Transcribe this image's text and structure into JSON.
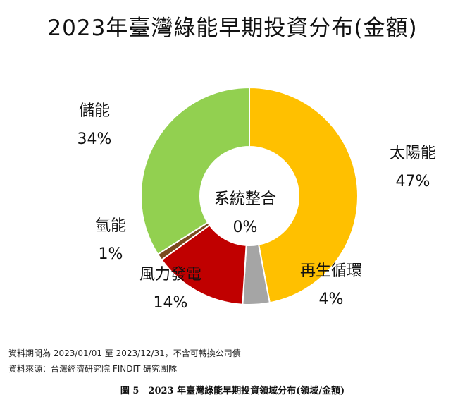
{
  "chart_data": {
    "type": "pie",
    "title": "2023年臺灣綠能早期投資分布(金額)",
    "categories": [
      "太陽能",
      "再生循環",
      "系統整合",
      "風力發電",
      "氫能",
      "儲能"
    ],
    "values": [
      47,
      4,
      0,
      14,
      1,
      34
    ],
    "value_labels": [
      "47%",
      "4%",
      "0%",
      "14%",
      "1%",
      "34%"
    ],
    "colors": [
      "#FFC000",
      "#A5A5A5",
      "#4472C4",
      "#C00000",
      "#7B4A1E",
      "#92D050"
    ],
    "donut": true
  },
  "notes": {
    "period": "資料期間為 2023/01/01 至 2023/12/31，不含可轉換公司債",
    "source": "資料來源：台灣經濟研究院 FINDIT 研究團隊"
  },
  "caption": "圖 5　2023 年臺灣綠能早期投資領域分布(領域/金額)"
}
